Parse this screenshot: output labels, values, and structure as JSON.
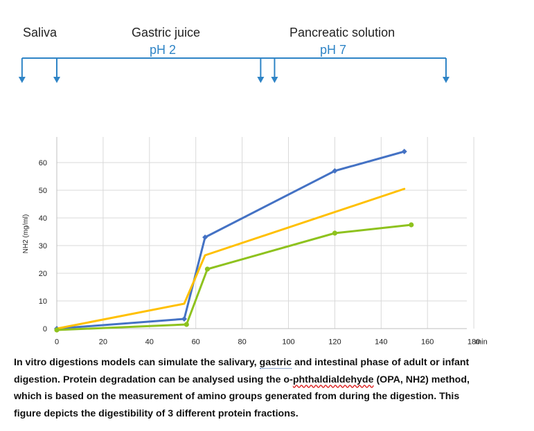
{
  "phases": {
    "saliva": "Saliva",
    "gastric": "Gastric juice",
    "gastric_ph": "pH 2",
    "pancreatic": "Pancreatic solution",
    "pancreatic_ph": "pH 7",
    "arrow_minutes": [
      -15,
      0,
      88,
      94,
      168
    ]
  },
  "colors": {
    "phase_line": "#2e84c6",
    "blue_series": "#4472c4",
    "orange_series": "#ffc000",
    "green_series": "#8ec21e",
    "grid": "#d9d9d9"
  },
  "chart_data": {
    "type": "line",
    "ylabel": "NH2 (mg/ml)",
    "xlabel": "min",
    "xlim": [
      0,
      180
    ],
    "ylim": [
      0,
      60
    ],
    "xticks": [
      0,
      20,
      40,
      60,
      80,
      100,
      120,
      140,
      160,
      180
    ],
    "yticks": [
      0,
      10,
      20,
      30,
      40,
      50,
      60
    ],
    "grid": true,
    "series": [
      {
        "color": "#4472c4",
        "marker": "diamond",
        "points": [
          [
            0,
            0
          ],
          [
            55,
            3.5
          ],
          [
            64,
            33
          ],
          [
            120,
            57
          ],
          [
            150,
            64
          ]
        ]
      },
      {
        "color": "#ffc000",
        "marker": "none",
        "points": [
          [
            0,
            0
          ],
          [
            55,
            9
          ],
          [
            64,
            26.5
          ],
          [
            150,
            50.5
          ]
        ]
      },
      {
        "color": "#8ec21e",
        "marker": "circle",
        "points": [
          [
            0,
            -0.5
          ],
          [
            56,
            1.5
          ],
          [
            65,
            21.5
          ],
          [
            120,
            34.5
          ],
          [
            153,
            37.5
          ]
        ]
      }
    ]
  },
  "caption": {
    "line1_a": "In vitro digestions models can simulate the salivary, ",
    "line1_b": "gastric",
    "line1_c": " and intestinal phase of adult or infant",
    "line2_a": "digestion. Protein degradation can be analysed using the o-",
    "line2_b": "phthaldialdehyde",
    "line2_c": " (OPA, NH2) method,",
    "line3": "which is based on the measurement of amino groups generated from during the digestion. This",
    "line4": "figure depicts the digestibility of 3 different protein fractions."
  }
}
